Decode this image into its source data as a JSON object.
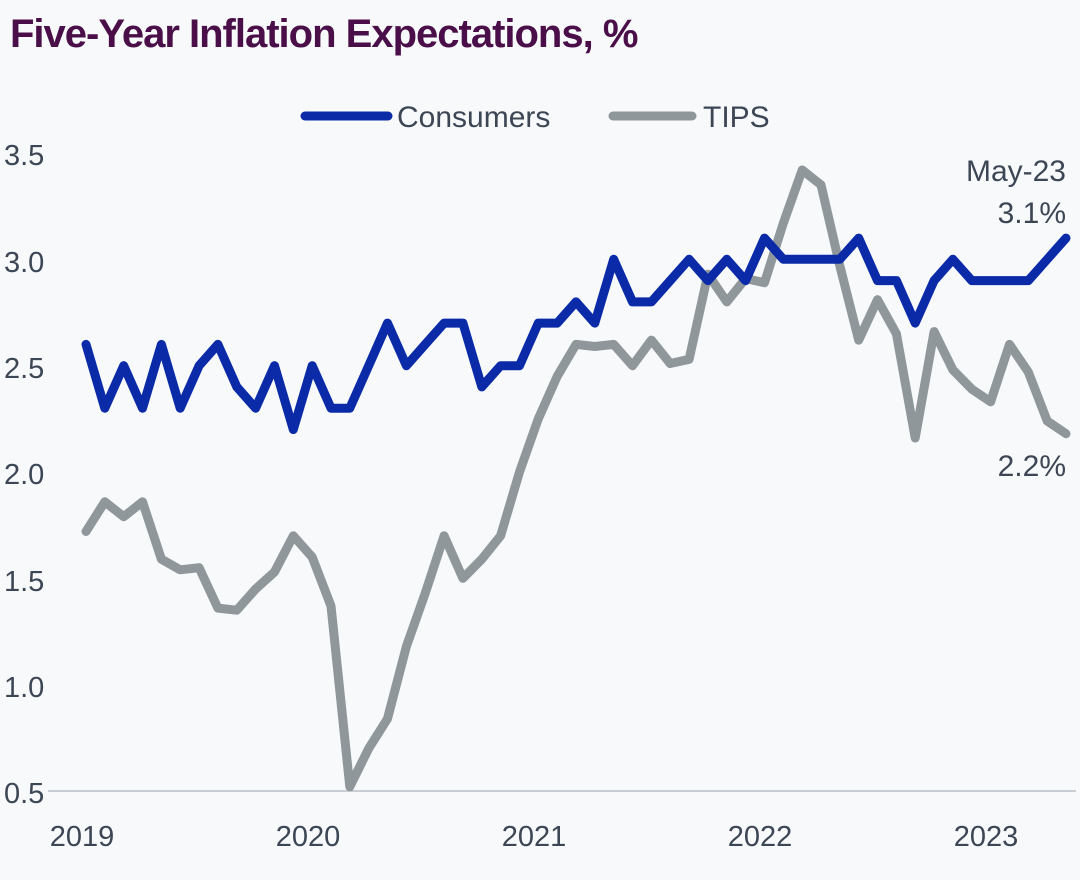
{
  "chart_data": {
    "type": "line",
    "title": "Five-Year Inflation Expectations, %",
    "xlabel": "",
    "ylabel": "",
    "x_ticks": [
      "2019",
      "2020",
      "2021",
      "2022",
      "2023"
    ],
    "y_ticks": [
      "0.5",
      "1.0",
      "1.5",
      "2.0",
      "2.5",
      "3.0",
      "3.5"
    ],
    "xlim": [
      "2019-01",
      "2023-05"
    ],
    "ylim": [
      0.5,
      3.5
    ],
    "grid": false,
    "legend_position": "top-center",
    "x": [
      "2019-01",
      "2019-02",
      "2019-03",
      "2019-04",
      "2019-05",
      "2019-06",
      "2019-07",
      "2019-08",
      "2019-09",
      "2019-10",
      "2019-11",
      "2019-12",
      "2020-01",
      "2020-02",
      "2020-03",
      "2020-04",
      "2020-05",
      "2020-06",
      "2020-07",
      "2020-08",
      "2020-09",
      "2020-10",
      "2020-11",
      "2020-12",
      "2021-01",
      "2021-02",
      "2021-03",
      "2021-04",
      "2021-05",
      "2021-06",
      "2021-07",
      "2021-08",
      "2021-09",
      "2021-10",
      "2021-11",
      "2021-12",
      "2022-01",
      "2022-02",
      "2022-03",
      "2022-04",
      "2022-05",
      "2022-06",
      "2022-07",
      "2022-08",
      "2022-09",
      "2022-10",
      "2022-11",
      "2022-12",
      "2023-01",
      "2023-02",
      "2023-03",
      "2023-04",
      "2023-05"
    ],
    "series": [
      {
        "name": "Consumers",
        "color": "#0a2aa8",
        "values": [
          2.6,
          2.3,
          2.5,
          2.3,
          2.6,
          2.3,
          2.5,
          2.6,
          2.4,
          2.3,
          2.5,
          2.2,
          2.5,
          2.3,
          2.3,
          2.5,
          2.7,
          2.5,
          2.6,
          2.7,
          2.7,
          2.4,
          2.5,
          2.5,
          2.7,
          2.7,
          2.8,
          2.7,
          3.0,
          2.8,
          2.8,
          2.9,
          3.0,
          2.9,
          3.0,
          2.9,
          3.1,
          3.0,
          3.0,
          3.0,
          3.0,
          3.1,
          2.9,
          2.9,
          2.7,
          2.9,
          3.0,
          2.9,
          2.9,
          2.9,
          2.9,
          3.0,
          3.1
        ]
      },
      {
        "name": "TIPS",
        "color": "#8f979b",
        "values": [
          1.72,
          1.86,
          1.79,
          1.86,
          1.59,
          1.54,
          1.55,
          1.36,
          1.35,
          1.45,
          1.53,
          1.7,
          1.6,
          1.37,
          0.52,
          0.7,
          0.84,
          1.18,
          1.43,
          1.7,
          1.5,
          1.59,
          1.7,
          2.0,
          2.25,
          2.45,
          2.6,
          2.59,
          2.6,
          2.5,
          2.62,
          2.51,
          2.53,
          2.93,
          2.8,
          2.91,
          2.89,
          3.17,
          3.42,
          3.35,
          2.97,
          2.62,
          2.81,
          2.65,
          2.16,
          2.66,
          2.48,
          2.39,
          2.33,
          2.6,
          2.47,
          2.24,
          2.18
        ]
      }
    ],
    "annotations": [
      {
        "text": "May-23",
        "series": "Consumers"
      },
      {
        "text": "3.1%",
        "series": "Consumers"
      },
      {
        "text": "2.2%",
        "series": "TIPS"
      }
    ]
  }
}
